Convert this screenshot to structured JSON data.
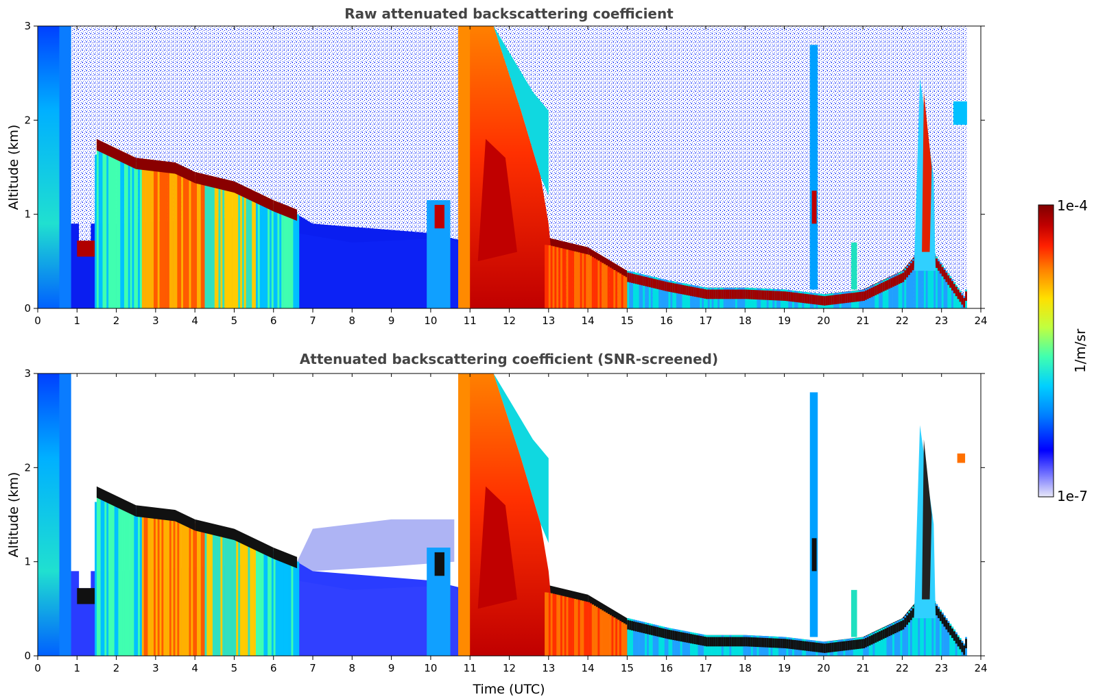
{
  "chart_data": [
    {
      "type": "heatmap",
      "title": "Raw attenuated backscattering coefficient",
      "xlabel": "",
      "ylabel": "Altitude (km)",
      "xlim": [
        0,
        24
      ],
      "ylim": [
        0,
        3
      ],
      "xticks": [
        "0",
        "1",
        "2",
        "3",
        "4",
        "5",
        "6",
        "7",
        "8",
        "9",
        "10",
        "11",
        "12",
        "13",
        "14",
        "15",
        "16",
        "17",
        "18",
        "19",
        "20",
        "21",
        "22",
        "23",
        "24"
      ],
      "yticks": [
        "0",
        "1",
        "2",
        "3"
      ],
      "features": {
        "cloud_top_km": [
          {
            "x": 1.0,
            "y": 0.65
          },
          {
            "x": 1.5,
            "y": 1.8
          },
          {
            "x": 2.5,
            "y": 1.6
          },
          {
            "x": 3.5,
            "y": 1.55
          },
          {
            "x": 4.0,
            "y": 1.45
          },
          {
            "x": 5.0,
            "y": 1.35
          },
          {
            "x": 6.0,
            "y": 1.15
          },
          {
            "x": 6.6,
            "y": 1.05
          },
          {
            "x": 13.0,
            "y": 0.75
          },
          {
            "x": 14.0,
            "y": 0.65
          },
          {
            "x": 15.0,
            "y": 0.4
          },
          {
            "x": 16.0,
            "y": 0.3
          },
          {
            "x": 17.0,
            "y": 0.22
          },
          {
            "x": 18.0,
            "y": 0.22
          },
          {
            "x": 19.0,
            "y": 0.2
          },
          {
            "x": 20.0,
            "y": 0.15
          },
          {
            "x": 21.0,
            "y": 0.2
          },
          {
            "x": 22.0,
            "y": 0.4
          },
          {
            "x": 22.6,
            "y": 0.7
          },
          {
            "x": 23.6,
            "y": 0.1
          }
        ],
        "dense_layer_start_utc": 11.0,
        "data_end_utc": 23.65
      }
    },
    {
      "type": "heatmap",
      "title": "Attenuated backscattering coefficient (SNR-screened)",
      "xlabel": "Time (UTC)",
      "ylabel": "Altitude (km)",
      "xlim": [
        0,
        24
      ],
      "ylim": [
        0,
        3
      ],
      "xticks": [
        "0",
        "1",
        "2",
        "3",
        "4",
        "5",
        "6",
        "7",
        "8",
        "9",
        "10",
        "11",
        "12",
        "13",
        "14",
        "15",
        "16",
        "17",
        "18",
        "19",
        "20",
        "21",
        "22",
        "23",
        "24"
      ],
      "yticks": [
        "0",
        "1",
        "2",
        "3"
      ]
    }
  ],
  "colorbar": {
    "label": "1/m/sr",
    "max_label": "1e-4",
    "min_label": "1e-7",
    "scale": "log",
    "colormap": [
      "#e8e8f8",
      "#7070ff",
      "#0000ff",
      "#0080ff",
      "#00d0ff",
      "#40ffb0",
      "#c0ff40",
      "#ffe000",
      "#ff8000",
      "#ff2000",
      "#c00000",
      "#800000"
    ]
  }
}
